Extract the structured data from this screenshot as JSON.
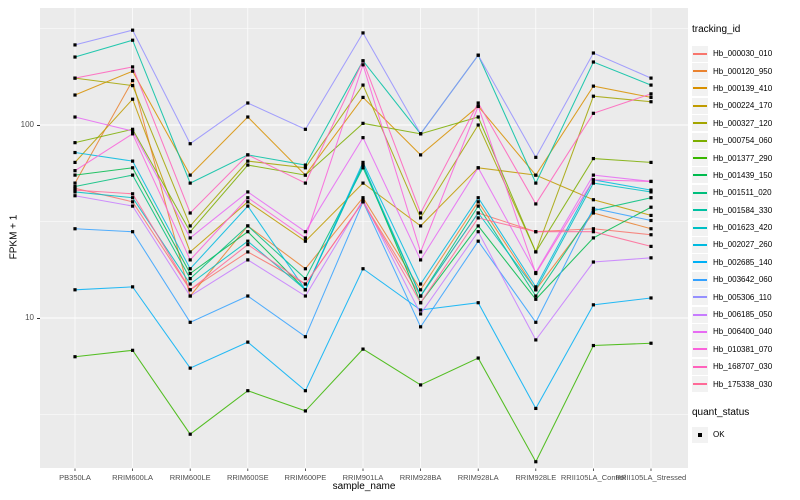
{
  "axes": {
    "y_title": "FPKM + 1",
    "x_title": "sample_name",
    "y_tick_labels": [
      "100",
      "10"
    ]
  },
  "legend": {
    "tracking_title": "tracking_id",
    "quant_title": "quant_status",
    "quant_ok_label": "OK"
  },
  "chart_data": {
    "type": "line",
    "title": "",
    "xlabel": "sample_name",
    "ylabel": "FPKM + 1",
    "y_scale": "log10",
    "ylim": [
      1.65,
      400
    ],
    "y_ticks": [
      10,
      100
    ],
    "y_minor_gridlines": [
      3.162,
      31.623,
      316.228
    ],
    "grid": "on",
    "legend_position": "right",
    "panel_background": "#EBEBEB",
    "gridline_color": "#FFFFFF",
    "marker": "black-square",
    "categories": [
      "PB350LA",
      "RRIM600LA",
      "RRIM600LE",
      "RRIM600SE",
      "RRIM600PE",
      "RRIM901LA",
      "RRIM928BA",
      "RRIM928LA",
      "RRIM928LE",
      "RRII105LA_Control",
      "RRII105LA_Stressed"
    ],
    "series": [
      {
        "name": "Hb_000030_010",
        "color": "#F8766D",
        "values": [
          47,
          40,
          14,
          22,
          15,
          40,
          13,
          35,
          28,
          29,
          27
        ]
      },
      {
        "name": "Hb_000120_950",
        "color": "#EA8331",
        "values": [
          50,
          170,
          13,
          30,
          18,
          42,
          14,
          40,
          14,
          35,
          29
        ]
      },
      {
        "name": "Hb_000139_410",
        "color": "#D89000",
        "values": [
          143,
          190,
          55,
          110,
          55,
          139,
          70,
          125,
          55,
          159,
          139
        ]
      },
      {
        "name": "Hb_000224_170",
        "color": "#C09B00",
        "values": [
          64,
          136,
          22,
          40,
          25,
          50,
          30,
          60,
          55,
          41,
          34
        ]
      },
      {
        "name": "Hb_000327_120",
        "color": "#A3A500",
        "values": [
          175,
          160,
          30,
          65,
          60,
          161,
          33,
          100,
          22,
          141,
          132
        ]
      },
      {
        "name": "Hb_000754_060",
        "color": "#7CAE00",
        "values": [
          81,
          95,
          28,
          62,
          55,
          102,
          90,
          110,
          22,
          67,
          64
        ]
      },
      {
        "name": "Hb_001377_290",
        "color": "#39B600",
        "values": [
          6.3,
          6.8,
          2.5,
          4.2,
          3.3,
          6.9,
          4.5,
          6.2,
          1.8,
          7.2,
          7.4
        ]
      },
      {
        "name": "Hb_001439_150",
        "color": "#00BB4E",
        "values": [
          55,
          60,
          17,
          28,
          14,
          62,
          12,
          30,
          12.5,
          26,
          37.5
        ]
      },
      {
        "name": "Hb_001511_020",
        "color": "#00BF7D",
        "values": [
          48,
          55,
          16,
          30,
          16,
          60,
          13,
          38,
          13,
          36,
          42
        ]
      },
      {
        "name": "Hb_001584_330",
        "color": "#00C1A3",
        "values": [
          225,
          275,
          50,
          70,
          62,
          215,
          90,
          230,
          50,
          212,
          161
        ]
      },
      {
        "name": "Hb_001623_420",
        "color": "#00BFC4",
        "values": [
          45,
          42,
          15,
          25,
          14,
          62,
          13,
          35,
          14,
          50,
          45
        ]
      },
      {
        "name": "Hb_002027_260",
        "color": "#00BAE0",
        "values": [
          72,
          65,
          18,
          38,
          14,
          64,
          15,
          42,
          14.5,
          52,
          46
        ]
      },
      {
        "name": "Hb_002685_140",
        "color": "#00B0F6",
        "values": [
          14,
          14.5,
          5.5,
          7.5,
          4.2,
          18,
          11,
          12,
          3.4,
          11.7,
          12.7
        ]
      },
      {
        "name": "Hb_003642_060",
        "color": "#35A2FF",
        "values": [
          29,
          28,
          9.5,
          13,
          8,
          40,
          9,
          25,
          9.5,
          37,
          32
        ]
      },
      {
        "name": "Hb_005306_110",
        "color": "#9590FF",
        "values": [
          260,
          310,
          80,
          130,
          95,
          300,
          90,
          230,
          68,
          236,
          175
        ]
      },
      {
        "name": "Hb_006185_050",
        "color": "#C77CFF",
        "values": [
          43,
          38,
          13,
          20,
          13,
          41,
          10.5,
          28,
          7.7,
          19.5,
          20.5
        ]
      },
      {
        "name": "Hb_006400_040",
        "color": "#E76BF3",
        "values": [
          110,
          93,
          26,
          45,
          28,
          86,
          20,
          60,
          17.2,
          55,
          51
        ]
      },
      {
        "name": "Hb_010381_070",
        "color": "#FA62DB",
        "values": [
          58,
          90,
          20,
          42,
          26,
          205,
          22,
          125,
          17,
          52,
          51
        ]
      },
      {
        "name": "Hb_168707_030",
        "color": "#FF62BC",
        "values": [
          175,
          200,
          35,
          70,
          50,
          215,
          35,
          130,
          39,
          115,
          145
        ]
      },
      {
        "name": "Hb_175338_030",
        "color": "#FF6A98",
        "values": [
          46,
          44,
          14,
          24,
          15,
          40,
          12,
          33,
          28,
          28,
          23.5
        ]
      }
    ],
    "quant_status_legend": {
      "title": "quant_status",
      "items": [
        "OK"
      ]
    }
  }
}
